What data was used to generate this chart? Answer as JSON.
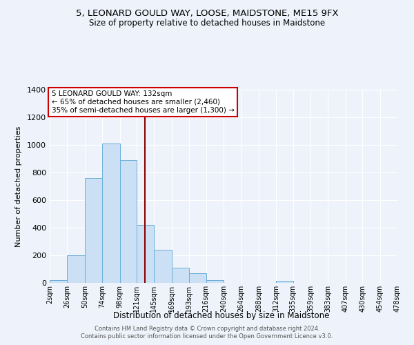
{
  "title": "5, LEONARD GOULD WAY, LOOSE, MAIDSTONE, ME15 9FX",
  "subtitle": "Size of property relative to detached houses in Maidstone",
  "xlabel": "Distribution of detached houses by size in Maidstone",
  "ylabel": "Number of detached properties",
  "bar_color": "#cce0f5",
  "bar_edge_color": "#6aaed6",
  "background_color": "#eef3fb",
  "grid_color": "#ffffff",
  "bin_edges": [
    2,
    26,
    50,
    74,
    98,
    121,
    145,
    169,
    193,
    216,
    240,
    264,
    288,
    312,
    335,
    359,
    383,
    407,
    430,
    454,
    478
  ],
  "bin_labels": [
    "2sqm",
    "26sqm",
    "50sqm",
    "74sqm",
    "98sqm",
    "121sqm",
    "145sqm",
    "169sqm",
    "193sqm",
    "216sqm",
    "240sqm",
    "264sqm",
    "288sqm",
    "312sqm",
    "335sqm",
    "359sqm",
    "383sqm",
    "407sqm",
    "430sqm",
    "454sqm",
    "478sqm"
  ],
  "counts": [
    20,
    200,
    760,
    1010,
    890,
    420,
    240,
    110,
    70,
    20,
    0,
    0,
    0,
    15,
    0,
    0,
    0,
    0,
    0,
    0
  ],
  "vline_x": 132,
  "vline_color": "#8b0000",
  "annotation_text_line1": "5 LEONARD GOULD WAY: 132sqm",
  "annotation_text_line2": "← 65% of detached houses are smaller (2,460)",
  "annotation_text_line3": "35% of semi-detached houses are larger (1,300) →",
  "annotation_box_color": "#ffffff",
  "annotation_box_edge_color": "#cc0000",
  "ylim": [
    0,
    1400
  ],
  "yticks": [
    0,
    200,
    400,
    600,
    800,
    1000,
    1200,
    1400
  ],
  "footer_line1": "Contains HM Land Registry data © Crown copyright and database right 2024.",
  "footer_line2": "Contains public sector information licensed under the Open Government Licence v3.0."
}
